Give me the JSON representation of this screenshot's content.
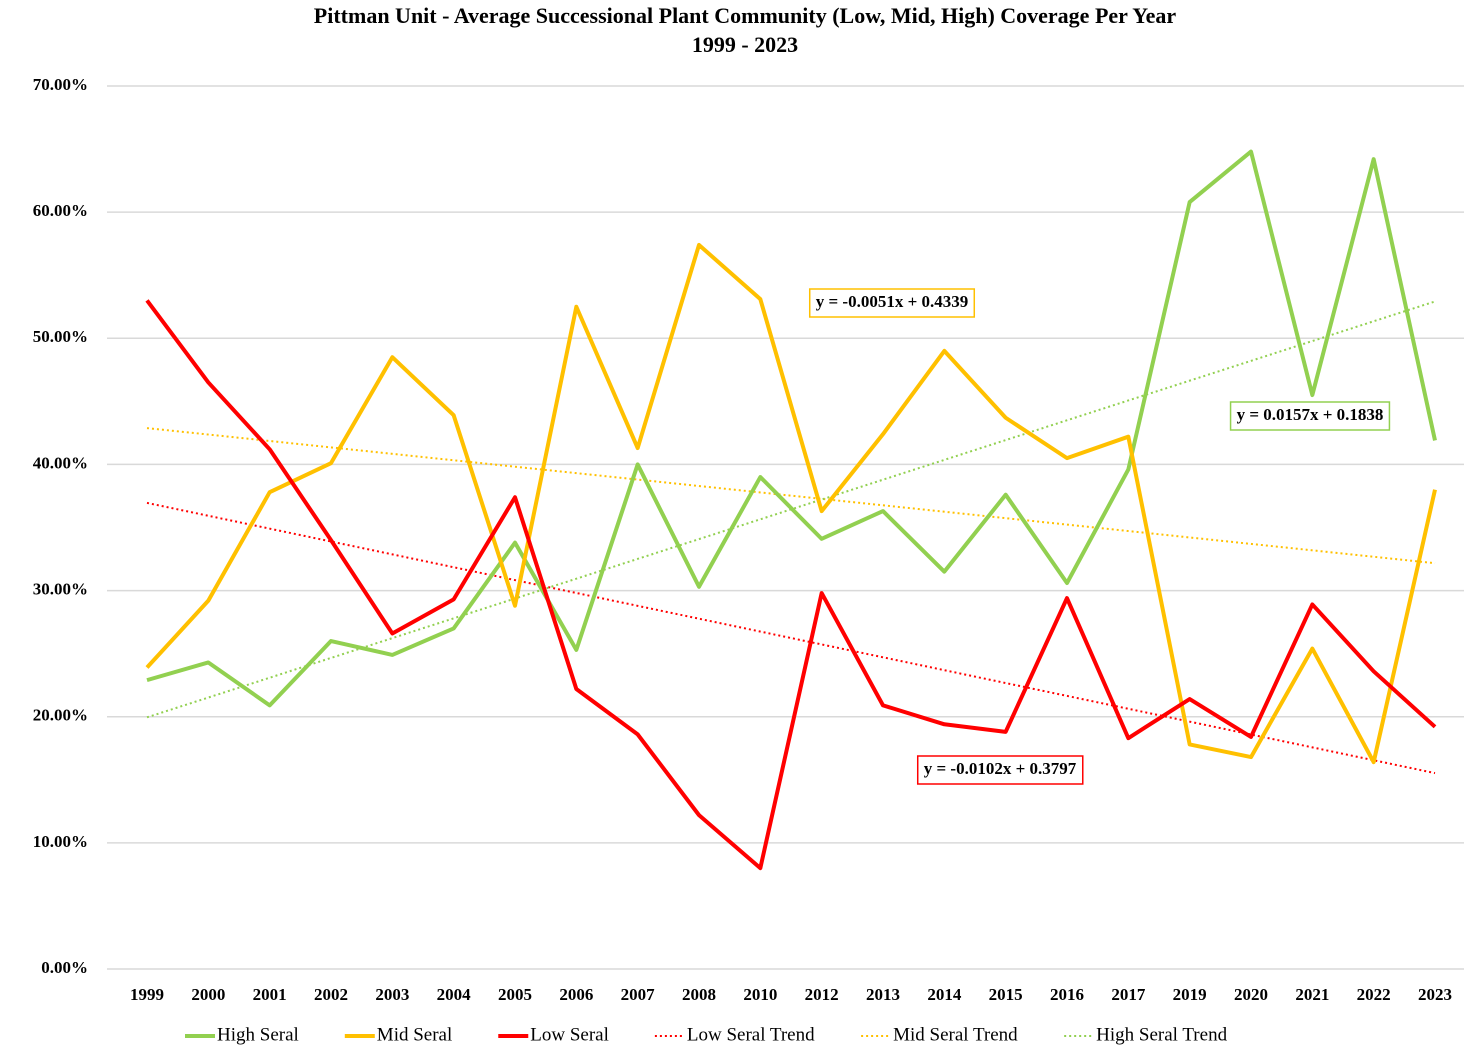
{
  "chart_data": {
    "type": "line",
    "title": "Pittman Unit - Average Successional Plant Community (Low, Mid, High) Coverage Per Year",
    "subtitle": "1999 - 2023",
    "categories": [
      "1999",
      "2000",
      "2001",
      "2002",
      "2003",
      "2004",
      "2005",
      "2006",
      "2007",
      "2008",
      "2010",
      "2012",
      "2013",
      "2014",
      "2015",
      "2016",
      "2017",
      "2019",
      "2020",
      "2021",
      "2022",
      "2023"
    ],
    "ylim": [
      0,
      70
    ],
    "yticks": [
      {
        "value": 0,
        "label": "0.00%"
      },
      {
        "value": 10,
        "label": "10.00%"
      },
      {
        "value": 20,
        "label": "20.00%"
      },
      {
        "value": 30,
        "label": "30.00%"
      },
      {
        "value": 40,
        "label": "40.00%"
      },
      {
        "value": 50,
        "label": "50.00%"
      },
      {
        "value": 60,
        "label": "60.00%"
      },
      {
        "value": 70,
        "label": "70.00%"
      }
    ],
    "grid": true,
    "legend": "bottom",
    "series": [
      {
        "name": "High Seral",
        "color": "#92d050",
        "values": [
          22.9,
          24.3,
          20.9,
          26.0,
          24.9,
          27.0,
          33.8,
          25.3,
          40.0,
          30.3,
          39.0,
          34.1,
          36.3,
          31.5,
          37.6,
          30.6,
          39.6,
          60.8,
          64.8,
          45.5,
          64.2,
          41.9
        ]
      },
      {
        "name": "Mid Seral",
        "color": "#ffc000",
        "values": [
          23.9,
          29.2,
          37.8,
          40.1,
          48.5,
          43.9,
          28.8,
          52.5,
          41.3,
          57.4,
          53.1,
          36.3,
          42.4,
          49.0,
          43.7,
          40.5,
          42.2,
          17.8,
          16.8,
          25.4,
          16.4,
          38.0
        ]
      },
      {
        "name": "Low Seral",
        "color": "#ff0000",
        "values": [
          53.0,
          46.5,
          41.2,
          34.0,
          26.6,
          29.3,
          37.4,
          22.2,
          18.6,
          12.2,
          8.0,
          29.8,
          20.9,
          19.4,
          18.8,
          29.4,
          18.3,
          21.4,
          18.4,
          28.9,
          23.6,
          19.2
        ]
      }
    ],
    "trendlines": [
      {
        "name": "Low Seral Trend",
        "color": "#ff0000",
        "start": 36.95,
        "end": 15.53,
        "equation": "y = -0.0102x + 0.3797"
      },
      {
        "name": "Mid Seral Trend",
        "color": "#ffc000",
        "start": 42.88,
        "end": 32.17,
        "equation": "y = -0.0051x + 0.4339"
      },
      {
        "name": "High Seral Trend",
        "color": "#92d050",
        "start": 19.95,
        "end": 52.92,
        "equation": "y = 0.0157x + 0.1838"
      }
    ]
  }
}
